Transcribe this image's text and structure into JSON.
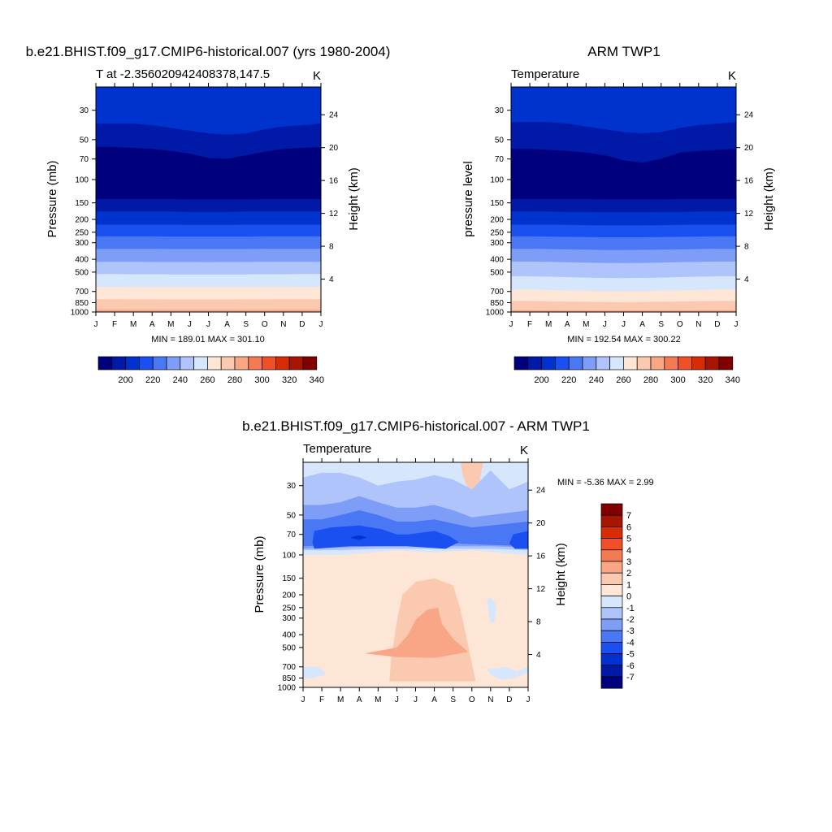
{
  "figure": {
    "colors": {
      "temperature": [
        "#00007e",
        "#0019a6",
        "#0032cd",
        "#1a4ff0",
        "#4a78f5",
        "#7d9df7",
        "#aec4fa",
        "#d6e6fd",
        "#fde6d6",
        "#fbc9b0",
        "#f8a685",
        "#f47a54",
        "#f14f27",
        "#d82c07",
        "#a81500",
        "#800000"
      ],
      "difference": [
        "#00007e",
        "#0019a6",
        "#0032cd",
        "#1a4ff0",
        "#4a78f5",
        "#7d9df7",
        "#aec4fa",
        "#d6e6fd",
        "#fde6d6",
        "#fbc9b0",
        "#f8a685",
        "#f47a54",
        "#f14f27",
        "#d82c07",
        "#a81500",
        "#800000"
      ]
    }
  },
  "panels": {
    "model": {
      "title": "b.e21.BHIST.f09_g17.CMIP6-historical.007 (yrs 1980-2004)",
      "subtitle_left": "T at -2.356020942408378,147.5",
      "units": "K",
      "ylabel": "Pressure (mb)",
      "ylabel_right": "Height (km)",
      "stats": "MIN = 189.01 MAX = 301.10"
    },
    "obs": {
      "title": "ARM TWP1",
      "subtitle_left": "Temperature",
      "units": "K",
      "ylabel": "pressure level",
      "ylabel_right": "Height (km)",
      "stats": "MIN = 192.54 MAX = 300.22"
    },
    "diff": {
      "title": "b.e21.BHIST.f09_g17.CMIP6-historical.007 - ARM TWP1",
      "subtitle_left": "Temperature",
      "units": "K",
      "ylabel": "Pressure (mb)",
      "ylabel_right": "Height (km)",
      "stats": "MIN =  -5.36 MAX =   2.99"
    }
  },
  "chart_data": [
    {
      "type": "heatmap",
      "name": "model",
      "title": "b.e21.BHIST.f09_g17.CMIP6-historical.007 (yrs 1980-2004)",
      "xlabel": "",
      "ylabel": "Pressure (mb)",
      "y2label": "Height (km)",
      "x_ticks": [
        "J",
        "F",
        "M",
        "A",
        "M",
        "J",
        "J",
        "A",
        "S",
        "O",
        "N",
        "D",
        "J"
      ],
      "y_ticks": [
        30,
        50,
        70,
        100,
        150,
        200,
        250,
        300,
        400,
        500,
        700,
        850,
        1000
      ],
      "y2_ticks": [
        4,
        8,
        12,
        16,
        20,
        24
      ],
      "ylim": [
        1000,
        20
      ],
      "y_scale": "log",
      "levels": [
        200,
        210,
        220,
        230,
        240,
        250,
        260,
        270,
        280,
        290,
        300,
        310,
        320,
        330,
        340
      ],
      "contour_levels": [
        {
          "level": 270,
          "p": [
            520,
            520,
            520,
            520,
            520,
            520,
            520,
            520,
            520,
            520,
            520,
            520,
            520
          ]
        },
        {
          "level": 280,
          "p": [
            640,
            640,
            640,
            640,
            640,
            640,
            640,
            640,
            640,
            640,
            640,
            640,
            640
          ]
        },
        {
          "level": 290,
          "p": [
            800,
            800,
            800,
            800,
            800,
            800,
            800,
            800,
            800,
            800,
            800,
            800,
            800
          ]
        },
        {
          "level": 300,
          "p": [
            960,
            960,
            960,
            960,
            960,
            960,
            960,
            960,
            960,
            960,
            960,
            960,
            960
          ]
        },
        {
          "level": 260,
          "p": [
            420,
            420,
            420,
            420,
            420,
            420,
            420,
            420,
            420,
            420,
            420,
            420,
            420
          ]
        },
        {
          "level": 250,
          "p": [
            335,
            335,
            335,
            335,
            335,
            335,
            335,
            335,
            335,
            335,
            335,
            335,
            335
          ]
        },
        {
          "level": 240,
          "p": [
            270,
            270,
            270,
            270,
            270,
            270,
            270,
            270,
            270,
            270,
            270,
            270,
            270
          ]
        },
        {
          "level": 230,
          "p": [
            220,
            220,
            220,
            220,
            220,
            220,
            220,
            220,
            220,
            220,
            220,
            220,
            220
          ]
        },
        {
          "level": 220,
          "p": [
            175,
            175,
            175,
            175,
            175,
            175,
            175,
            175,
            175,
            175,
            175,
            175,
            175
          ]
        },
        {
          "level": 210,
          "p": [
            140,
            140,
            140,
            140,
            140,
            140,
            140,
            140,
            140,
            140,
            140,
            140,
            140
          ]
        },
        {
          "level": 200,
          "p": [
            60,
            60,
            61,
            62,
            64,
            67,
            72,
            72,
            68,
            64,
            61,
            60,
            60
          ]
        },
        {
          "level": 200,
          "p": [
            38,
            38,
            38,
            39,
            41,
            42,
            44,
            44,
            43,
            41,
            40,
            39,
            38
          ]
        },
        {
          "level": 210,
          "p": [
            26,
            26,
            26,
            26,
            26,
            26,
            26,
            26,
            26,
            26,
            26,
            26,
            26
          ]
        }
      ],
      "min": 189.01,
      "max": 301.1,
      "units": "K"
    },
    {
      "type": "heatmap",
      "name": "obs",
      "title": "ARM TWP1",
      "xlabel": "",
      "ylabel": "pressure level",
      "y2label": "Height (km)",
      "x_ticks": [
        "J",
        "F",
        "M",
        "A",
        "M",
        "J",
        "J",
        "A",
        "S",
        "O",
        "N",
        "D",
        "J"
      ],
      "y_ticks": [
        30,
        50,
        70,
        100,
        150,
        200,
        250,
        300,
        400,
        500,
        700,
        850,
        1000
      ],
      "y2_ticks": [
        4,
        8,
        12,
        16,
        20,
        24
      ],
      "ylim": [
        1000,
        20
      ],
      "y_scale": "log",
      "levels": [
        200,
        210,
        220,
        230,
        240,
        250,
        260,
        270,
        280,
        290,
        300,
        310,
        320,
        330,
        340
      ],
      "min": 192.54,
      "max": 300.22,
      "units": "K"
    },
    {
      "type": "heatmap",
      "name": "diff",
      "title": "b.e21.BHIST.f09_g17.CMIP6-historical.007 - ARM TWP1",
      "xlabel": "",
      "ylabel": "Pressure (mb)",
      "y2label": "Height (km)",
      "x_ticks": [
        "J",
        "F",
        "M",
        "A",
        "M",
        "J",
        "J",
        "A",
        "S",
        "O",
        "N",
        "D",
        "J"
      ],
      "y_ticks": [
        30,
        50,
        70,
        100,
        150,
        200,
        250,
        300,
        400,
        500,
        700,
        850,
        1000
      ],
      "y2_ticks": [
        4,
        8,
        12,
        16,
        20,
        24
      ],
      "ylim": [
        1000,
        20
      ],
      "y_scale": "log",
      "levels": [
        -7,
        -6,
        -5,
        -4,
        -3,
        -2,
        -1,
        0,
        1,
        2,
        3,
        4,
        5,
        6,
        7
      ],
      "min": -5.36,
      "max": 2.99,
      "units": "K"
    }
  ],
  "colorbars": {
    "temperature": {
      "labels": [
        "200",
        "220",
        "240",
        "260",
        "280",
        "300",
        "320",
        "340"
      ]
    },
    "difference": {
      "labels": [
        "7",
        "6",
        "5",
        "4",
        "3",
        "2",
        "1",
        "0",
        "-1",
        "-2",
        "-3",
        "-4",
        "-5",
        "-6",
        "-7"
      ]
    }
  }
}
